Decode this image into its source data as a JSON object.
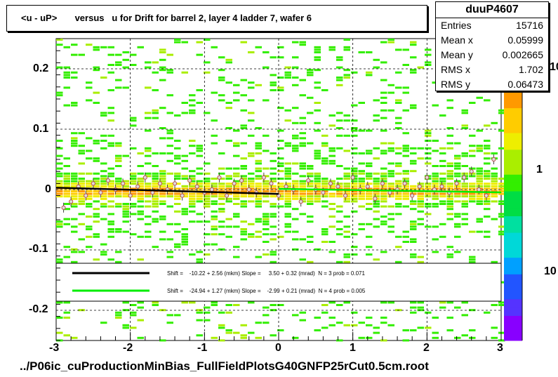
{
  "title": "<u - uP>       versus   u for Drift for barrel 2, layer 4 ladder 7, wafer 6",
  "file_label": "../P06ic_cuProductionMinBias_FullFieldPlotsG40GNFP25rCut0.5cm.root",
  "stats": {
    "name": "duuP4607",
    "rows": [
      {
        "label": "Entries",
        "value": "15716"
      },
      {
        "label": "Mean x",
        "value": "0.05999"
      },
      {
        "label": "Mean y",
        "value": "0.002665"
      },
      {
        "label": "RMS x",
        "value": "1.702"
      },
      {
        "label": "RMS y",
        "value": "0.06473"
      }
    ]
  },
  "colors": {
    "black_fit": "#000000",
    "green_fit": "#00ee00",
    "palette": [
      "#8800ff",
      "#5533ff",
      "#2255ff",
      "#00a0ff",
      "#00d8d8",
      "#00e0a0",
      "#00dd44",
      "#33ee00",
      "#aaee00",
      "#eeee00",
      "#ffcc00",
      "#ff9900"
    ]
  },
  "chart_data": {
    "type": "heatmap",
    "x_axis": {
      "range": [
        -3,
        3
      ],
      "ticks": [
        "-3",
        "-2",
        "-1",
        "0",
        "1",
        "2",
        "3"
      ]
    },
    "y_axis": {
      "range": [
        -0.25,
        0.25
      ],
      "ticks": [
        "0.2",
        "0.1",
        "0",
        "-0.1",
        "-0.2"
      ],
      "tick_values": [
        0.2,
        0.1,
        0,
        -0.1,
        -0.2
      ]
    },
    "z_axis": {
      "scale": "log",
      "tick_labels": [
        "10",
        "1",
        "10"
      ]
    },
    "grid": true,
    "legend": [
      {
        "color": "black",
        "text": "Shift =    -10.22 + 2.56 (mkm) Slope =     3.50 + 0.32 (mrad)  N = 3 prob = 0.071"
      },
      {
        "color": "green",
        "text": "Shift =    -24.94 + 1.27 (mkm) Slope =    -2.99 + 0.21 (mrad)  N = 4 prob = 0.005"
      }
    ],
    "fit_lines": [
      {
        "name": "black",
        "x": [
          -3,
          0
        ],
        "y": [
          0.0031,
          -0.0072
        ]
      },
      {
        "name": "green",
        "x": [
          0,
          3
        ],
        "y": [
          0.0012,
          -0.0046
        ]
      }
    ],
    "profile_points": {
      "x": [
        -2.9,
        -2.8,
        -2.7,
        -2.6,
        -2.5,
        -2.4,
        -2.3,
        -2.2,
        -2.1,
        -2.0,
        -1.9,
        -1.8,
        -1.7,
        -1.6,
        -1.5,
        -1.4,
        -1.3,
        -1.2,
        -1.1,
        -1.0,
        -0.9,
        -0.8,
        -0.7,
        -0.6,
        -0.5,
        -0.4,
        -0.3,
        -0.2,
        -0.1,
        0.0,
        0.1,
        0.2,
        0.3,
        0.4,
        0.5,
        0.6,
        0.7,
        0.8,
        0.9,
        1.0,
        1.1,
        1.2,
        1.3,
        1.4,
        1.5,
        1.6,
        1.7,
        1.8,
        1.9,
        2.0,
        2.1,
        2.2,
        2.3,
        2.4,
        2.5,
        2.6,
        2.7,
        2.8,
        2.9
      ],
      "y": [
        -0.03,
        -0.02,
        0.005,
        -0.01,
        0.01,
        -0.005,
        0.015,
        0.0,
        0.01,
        -0.01,
        0.005,
        0.02,
        -0.005,
        0.01,
        0.0,
        0.01,
        -0.01,
        0.015,
        0.005,
        -0.005,
        0.0,
        0.02,
        -0.01,
        0.01,
        0.015,
        0.0,
        -0.005,
        0.02,
        0.01,
        -0.01,
        0.005,
        0.0,
        -0.02,
        0.015,
        0.0,
        -0.005,
        0.01,
        0.005,
        -0.01,
        0.02,
        0.0,
        0.005,
        -0.015,
        0.01,
        -0.005,
        0.0,
        0.01,
        -0.01,
        0.005,
        0.02,
        0.0,
        0.005,
        -0.005,
        0.01,
        0.02,
        0.03,
        0.0,
        -0.01,
        0.05
      ]
    }
  }
}
